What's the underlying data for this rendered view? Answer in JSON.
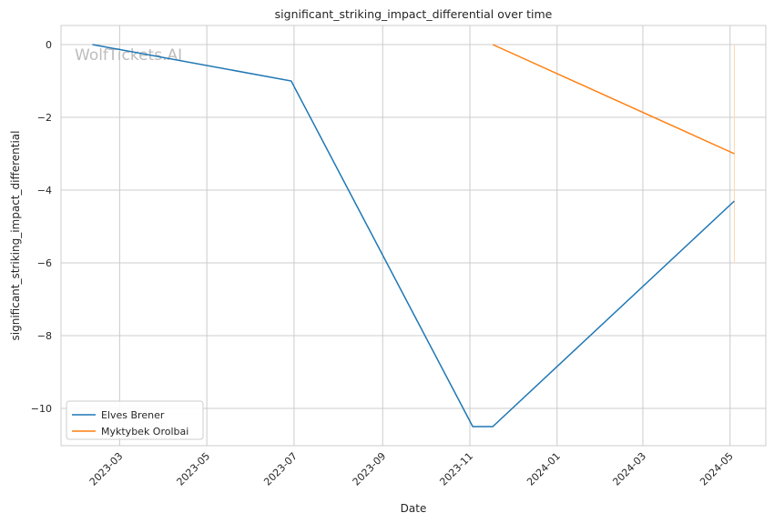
{
  "chart_data": {
    "type": "line",
    "title": "significant_striking_impact_differential over time",
    "xlabel": "Date",
    "ylabel": "significant_striking_impact_differential",
    "watermark": "WolfTickets.AI",
    "xlim": [
      "2023-01-19",
      "2024-05-26"
    ],
    "ylim": [
      -11.025,
      0.525
    ],
    "x_ticks": [
      "2023-03",
      "2023-05",
      "2023-07",
      "2023-09",
      "2023-11",
      "2024-01",
      "2024-03",
      "2024-05"
    ],
    "y_ticks": [
      0,
      -2,
      -4,
      -6,
      -8,
      -10
    ],
    "grid": true,
    "legend_position": "lower-left",
    "series": [
      {
        "name": "Elves Brener",
        "color": "#1f77b4",
        "x": [
          "2023-02-10",
          "2023-06-29",
          "2023-11-03",
          "2023-11-17",
          "2024-05-04"
        ],
        "y": [
          0,
          -1,
          -10.5,
          -10.5,
          -4.3
        ]
      },
      {
        "name": "Myktybek Orolbai",
        "color": "#ff7f0e",
        "x": [
          "2023-11-17",
          "2024-05-04"
        ],
        "y": [
          0,
          -3
        ]
      }
    ],
    "annotations": [
      {
        "type": "vline",
        "x": "2024-05-04",
        "y_range": [
          0,
          -6
        ],
        "color": "#ffd8b0"
      }
    ]
  }
}
